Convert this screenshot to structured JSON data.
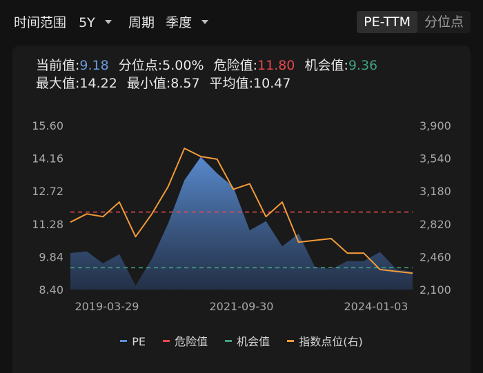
{
  "filters": {
    "range_label": "时间范围",
    "range_value": "5Y",
    "period_label": "周期",
    "period_value": "季度"
  },
  "toggle": {
    "options": [
      "PE-TTM",
      "分位点"
    ],
    "selected": "PE-TTM"
  },
  "stats": {
    "current_label": "当前值:",
    "current_value": "9.18",
    "percentile_label": "分位点:",
    "percentile_value": "5.00%",
    "danger_label": "危险值:",
    "danger_value": "11.80",
    "opportunity_label": "机会值:",
    "opportunity_value": "9.36",
    "max_label": "最大值:",
    "max_value": "14.22",
    "min_label": "最小值:",
    "min_value": "8.57",
    "avg_label": "平均值:",
    "avg_value": "10.47"
  },
  "colors": {
    "pe": "#5b8fd6",
    "danger": "#e5484d",
    "opportunity": "#3fa27f",
    "index": "#f29b38"
  },
  "legend": [
    "PE",
    "危险值",
    "机会值",
    "指数点位(右)"
  ],
  "chart_data": {
    "type": "line",
    "x_ticks": [
      "2019-03-29",
      "2021-09-30",
      "2024-01-03"
    ],
    "y_left_ticks": [
      "8.40",
      "9.84",
      "11.28",
      "12.72",
      "14.16",
      "15.60"
    ],
    "y_right_ticks": [
      "2,100",
      "2,460",
      "2,820",
      "3,180",
      "3,540",
      "3,900"
    ],
    "ylim_left": [
      8.4,
      15.6
    ],
    "ylim_right": [
      2100,
      3900
    ],
    "danger": 11.8,
    "opportunity": 9.36,
    "series": [
      {
        "name": "PE",
        "type": "area",
        "axis": "left",
        "values": [
          10.0,
          10.08,
          9.55,
          9.95,
          8.57,
          9.75,
          11.3,
          13.2,
          14.22,
          13.5,
          12.9,
          11.0,
          11.4,
          10.3,
          10.85,
          9.4,
          9.3,
          9.65,
          9.65,
          10.05,
          9.3,
          9.18
        ]
      },
      {
        "name": "指数点位(右)",
        "type": "line",
        "axis": "right",
        "values": [
          2840,
          2930,
          2900,
          3060,
          2680,
          2930,
          3230,
          3650,
          3560,
          3530,
          3200,
          3260,
          2900,
          3060,
          2620,
          2640,
          2660,
          2500,
          2500,
          2320,
          2300,
          2280
        ]
      }
    ]
  }
}
